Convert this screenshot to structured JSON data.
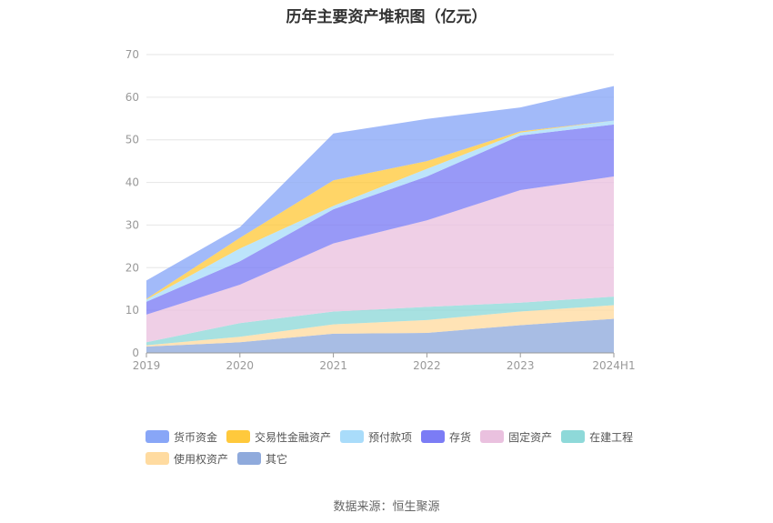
{
  "chart_data": {
    "type": "area",
    "stacked": true,
    "title": "历年主要资产堆积图（亿元）",
    "x": [
      "2019",
      "2020",
      "2021",
      "2022",
      "2023",
      "2024H1"
    ],
    "ylim": [
      0,
      70
    ],
    "yticks": [
      0,
      10,
      20,
      30,
      40,
      50,
      60,
      70
    ],
    "grid": true,
    "legend_position": "bottom",
    "series": [
      {
        "name": "其它",
        "color": "#8faadc",
        "values": [
          1.5,
          2.5,
          4.5,
          4.7,
          6.5,
          8.0
        ]
      },
      {
        "name": "使用权资产",
        "color": "#ffdba0",
        "values": [
          0.3,
          1.3,
          2.2,
          3.0,
          3.2,
          3.2
        ]
      },
      {
        "name": "在建工程",
        "color": "#8ed9d9",
        "values": [
          0.7,
          3.2,
          3.0,
          3.1,
          2.1,
          2.0
        ]
      },
      {
        "name": "固定资产",
        "color": "#eac1df",
        "values": [
          6.5,
          9.0,
          16.0,
          20.3,
          26.4,
          28.2
        ]
      },
      {
        "name": "存货",
        "color": "#7b7cf5",
        "values": [
          3.0,
          5.5,
          8.0,
          10.3,
          12.8,
          12.2
        ]
      },
      {
        "name": "预付款项",
        "color": "#a9dcfa",
        "values": [
          0.5,
          3.0,
          0.8,
          1.8,
          0.7,
          0.9
        ]
      },
      {
        "name": "交易性金融资产",
        "color": "#ffc93c",
        "values": [
          0.2,
          2.5,
          6.0,
          1.8,
          0.3,
          0.0
        ]
      },
      {
        "name": "货币资金",
        "color": "#88a6f7",
        "values": [
          4.3,
          2.5,
          11.0,
          9.9,
          5.6,
          8.1
        ]
      }
    ]
  },
  "legend": [
    {
      "name": "货币资金",
      "color": "#88a6f7"
    },
    {
      "name": "交易性金融资产",
      "color": "#ffc93c"
    },
    {
      "name": "预付款项",
      "color": "#a9dcfa"
    },
    {
      "name": "存货",
      "color": "#7b7cf5"
    },
    {
      "name": "固定资产",
      "color": "#eac1df"
    },
    {
      "name": "在建工程",
      "color": "#8ed9d9"
    },
    {
      "name": "使用权资产",
      "color": "#ffdba0"
    },
    {
      "name": "其它",
      "color": "#8faadc"
    }
  ],
  "source": "数据来源：恒生聚源"
}
